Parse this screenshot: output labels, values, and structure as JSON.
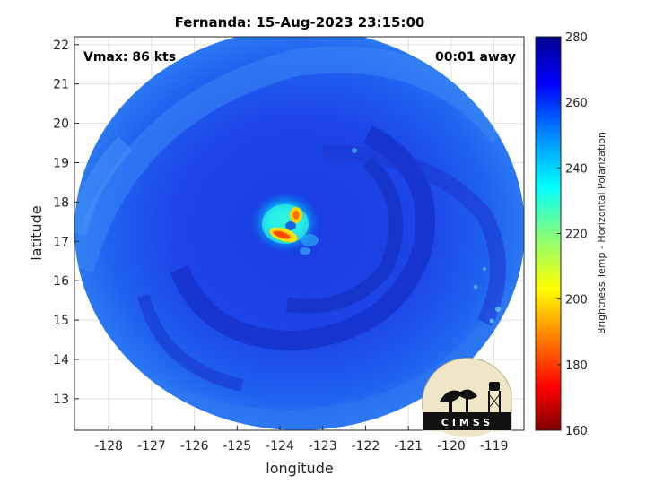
{
  "figure": {
    "title": "Fernanda: 15-Aug-2023 23:15:00",
    "vmax_label": "Vmax: 86 kts",
    "time_label": "00:01 away"
  },
  "map": {
    "xlabel": "longitude",
    "ylabel": "latitude",
    "xlim": [
      -128.8,
      -118.3
    ],
    "ylim": [
      12.2,
      22.2
    ],
    "xticks": [
      -128,
      -127,
      -126,
      -125,
      -124,
      -123,
      -122,
      -121,
      -120,
      -119
    ],
    "yticks": [
      13,
      14,
      15,
      16,
      17,
      18,
      19,
      20,
      21,
      22
    ],
    "grid": true,
    "storm_center": {
      "lon": -123.9,
      "lat": 17.3
    }
  },
  "colorbar": {
    "label": "Brightness Temp - Horizontal Polarization",
    "ticks": [
      160,
      180,
      200,
      220,
      240,
      260,
      280
    ],
    "range": [
      160,
      280
    ],
    "colormap": "jet",
    "colors": [
      "#800000",
      "#ff0000",
      "#ff8000",
      "#ffff00",
      "#80ff80",
      "#00ffff",
      "#0080ff",
      "#0000ff",
      "#00008f"
    ]
  },
  "logo": {
    "text": "CIMSS"
  }
}
